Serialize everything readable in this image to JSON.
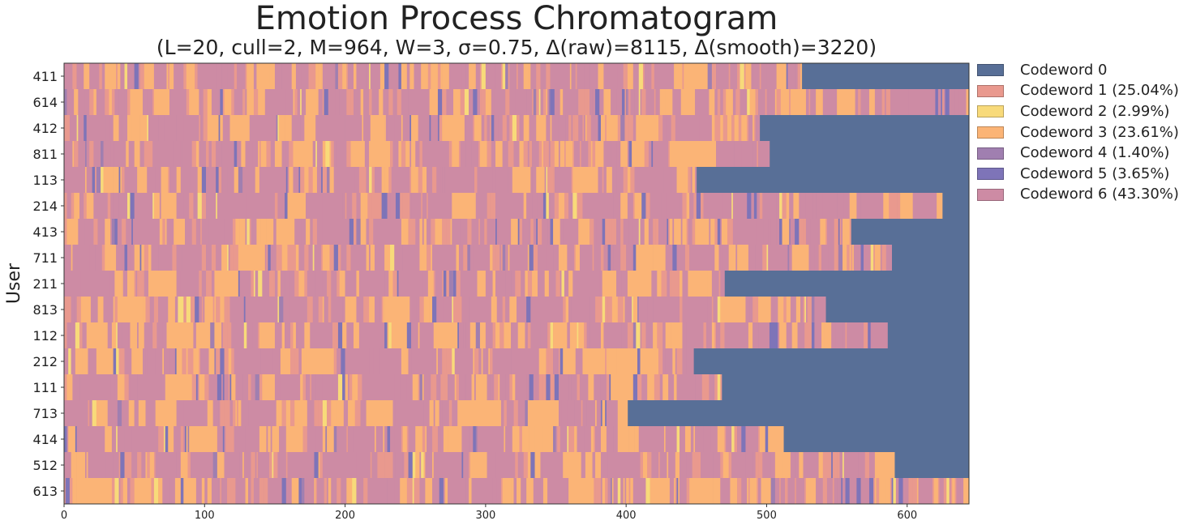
{
  "chart_data": {
    "type": "heatmap",
    "title": "Emotion Process Chromatogram",
    "subtitle": "(L=20, cull=2, M=964, W=3, σ=0.75, Δ(raw)=8115, Δ(smooth)=3220)",
    "xlabel": "",
    "ylabel": "User",
    "xlim": [
      0,
      644
    ],
    "x_ticks": [
      "0",
      "100",
      "200",
      "300",
      "400",
      "500",
      "600"
    ],
    "x_tick_values": [
      0,
      100,
      200,
      300,
      400,
      500,
      600
    ],
    "users": [
      "411",
      "614",
      "412",
      "811",
      "113",
      "214",
      "413",
      "711",
      "211",
      "813",
      "112",
      "212",
      "111",
      "713",
      "414",
      "512",
      "613"
    ],
    "sequence_lengths": [
      525,
      644,
      495,
      502,
      450,
      625,
      560,
      589,
      470,
      542,
      586,
      448,
      468,
      401,
      512,
      591,
      644
    ],
    "codewords": [
      {
        "id": 0,
        "label": "Codeword 0",
        "color": "#586f97"
      },
      {
        "id": 1,
        "label": "Codeword 1 (25.04%)",
        "color": "#e9998e",
        "share": 25.04
      },
      {
        "id": 2,
        "label": "Codeword 2 (2.99%)",
        "color": "#f8da7a",
        "share": 2.99
      },
      {
        "id": 3,
        "label": "Codeword 3 (23.61%)",
        "color": "#fbb476",
        "share": 23.61
      },
      {
        "id": 4,
        "label": "Codeword 4 (1.40%)",
        "color": "#a07fb0",
        "share": 1.4
      },
      {
        "id": 5,
        "label": "Codeword 5 (3.65%)",
        "color": "#7e74b8",
        "share": 3.65
      },
      {
        "id": 6,
        "label": "Codeword 6 (43.30%)",
        "color": "#cd8ba4",
        "share": 43.3
      }
    ],
    "grid": false,
    "legend_position": "outside-right"
  }
}
